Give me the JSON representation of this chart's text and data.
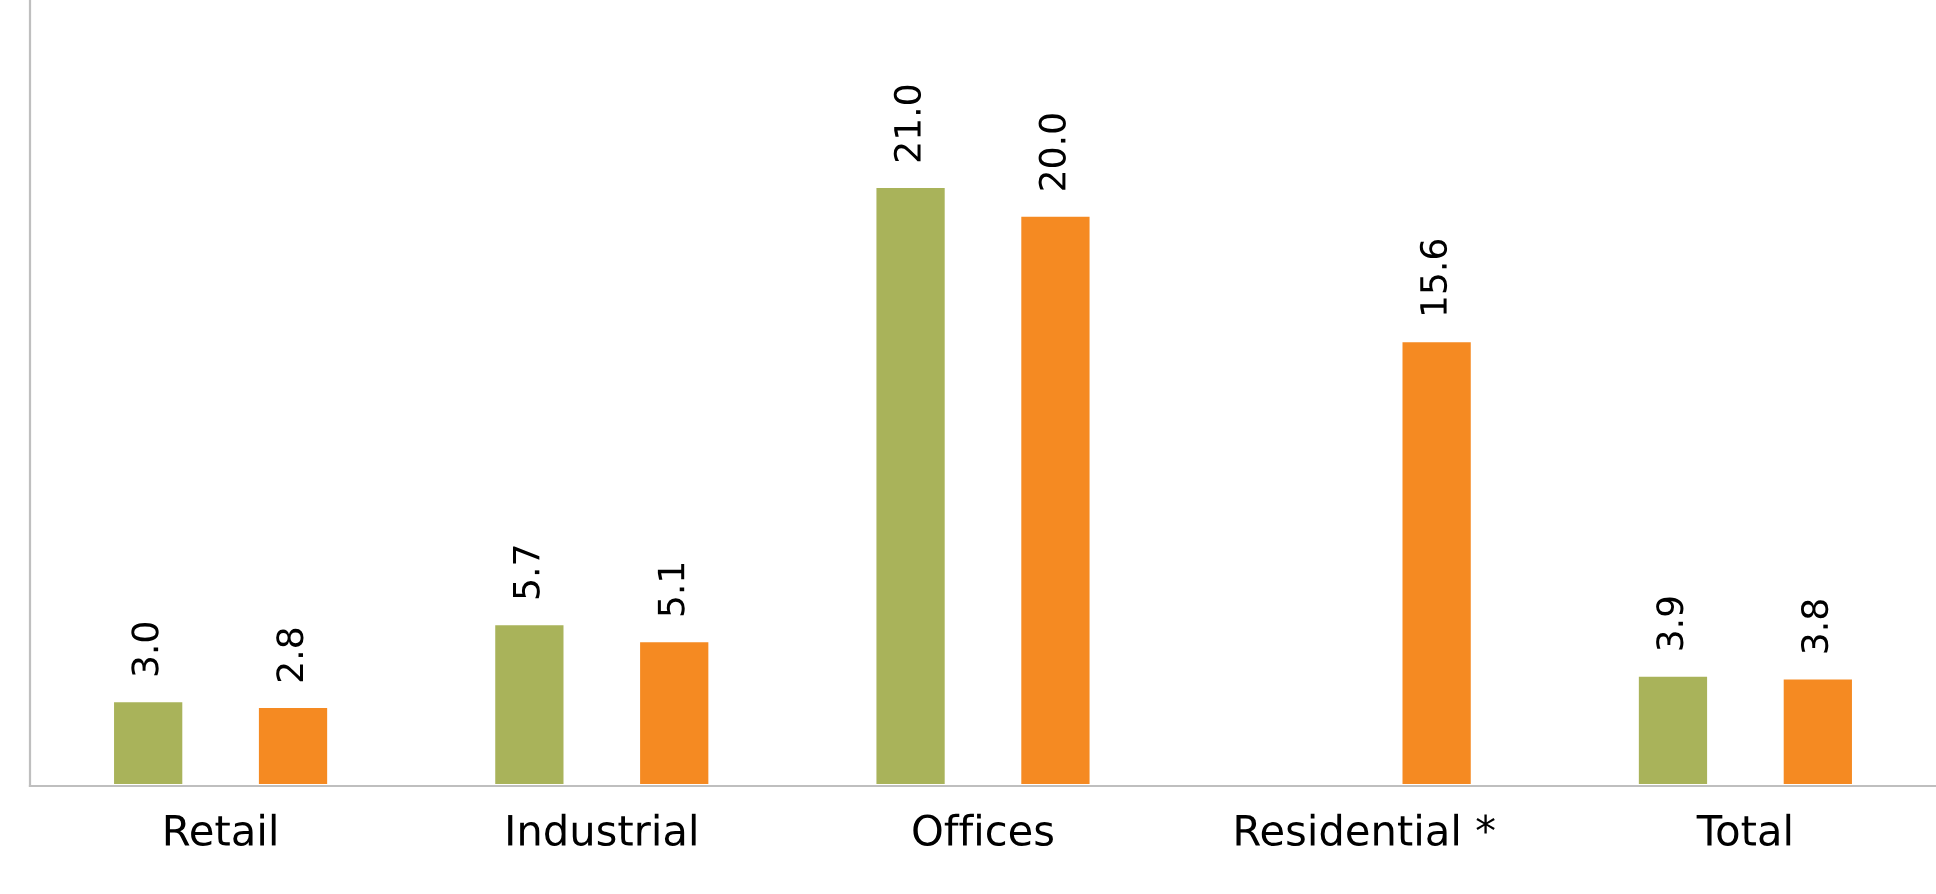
{
  "chart_data": {
    "type": "bar",
    "categories": [
      "Retail",
      "Industrial",
      "Offices",
      "Residential *",
      "Total"
    ],
    "series": [
      {
        "color": "#a9b35a",
        "values": [
          3.0,
          5.7,
          21.0,
          null,
          3.9
        ],
        "value_labels": [
          "3.0",
          "5.7",
          "21.0",
          null,
          "3.9"
        ]
      },
      {
        "color": "#f58a22",
        "values": [
          2.8,
          5.1,
          20.0,
          15.6,
          3.8
        ],
        "value_labels": [
          "2.8",
          "5.1",
          "20.0",
          "15.6",
          "3.8"
        ]
      }
    ],
    "grid": false,
    "legend": false
  }
}
